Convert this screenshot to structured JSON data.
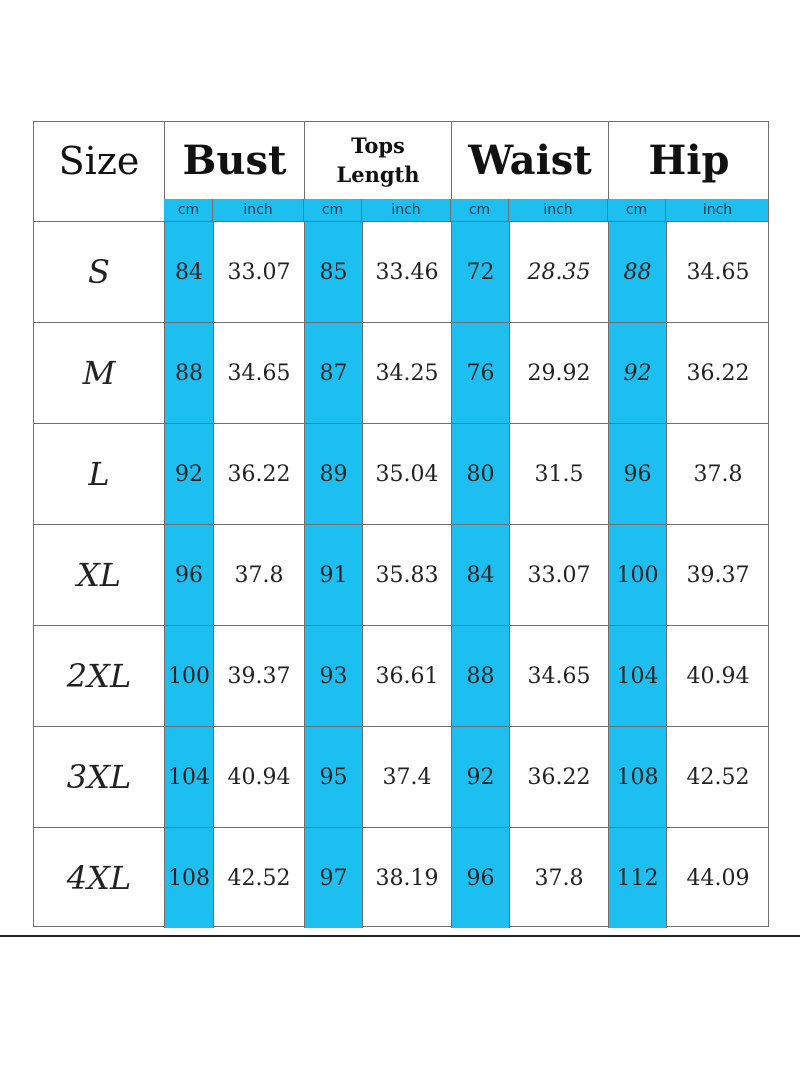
{
  "header": {
    "size": "Size",
    "groups": [
      {
        "label": "Bust"
      },
      {
        "label_line1": "Tops",
        "label_line2": "Length"
      },
      {
        "label": "Waist"
      },
      {
        "label": "Hip"
      }
    ],
    "units": [
      "cm",
      "inch",
      "cm",
      "inch",
      "cm",
      "inch",
      "cm",
      "inch"
    ]
  },
  "rows": [
    {
      "size": "S",
      "bust_cm": "84",
      "bust_in": "33.07",
      "len_cm": "85",
      "len_in": "33.46",
      "waist_cm": "72",
      "waist_in": "28.35",
      "hip_cm": "88",
      "hip_in": "34.65"
    },
    {
      "size": "M",
      "bust_cm": "88",
      "bust_in": "34.65",
      "len_cm": "87",
      "len_in": "34.25",
      "waist_cm": "76",
      "waist_in": "29.92",
      "hip_cm": "92",
      "hip_in": "36.22"
    },
    {
      "size": "L",
      "bust_cm": "92",
      "bust_in": "36.22",
      "len_cm": "89",
      "len_in": "35.04",
      "waist_cm": "80",
      "waist_in": "31.5",
      "hip_cm": "96",
      "hip_in": "37.8"
    },
    {
      "size": "XL",
      "bust_cm": "96",
      "bust_in": "37.8",
      "len_cm": "91",
      "len_in": "35.83",
      "waist_cm": "84",
      "waist_in": "33.07",
      "hip_cm": "100",
      "hip_in": "39.37"
    },
    {
      "size": "2XL",
      "bust_cm": "100",
      "bust_in": "39.37",
      "len_cm": "93",
      "len_in": "36.61",
      "waist_cm": "88",
      "waist_in": "34.65",
      "hip_cm": "104",
      "hip_in": "40.94"
    },
    {
      "size": "3XL",
      "bust_cm": "104",
      "bust_in": "40.94",
      "len_cm": "95",
      "len_in": "37.4",
      "waist_cm": "92",
      "waist_in": "36.22",
      "hip_cm": "108",
      "hip_in": "42.52"
    },
    {
      "size": "4XL",
      "bust_cm": "108",
      "bust_in": "42.52",
      "len_cm": "97",
      "len_in": "38.19",
      "waist_cm": "96",
      "waist_in": "37.8",
      "hip_cm": "112",
      "hip_in": "44.09"
    }
  ],
  "colors": {
    "accent": "#1dbff0",
    "border": "#6f6f6f",
    "text": "#222222"
  }
}
